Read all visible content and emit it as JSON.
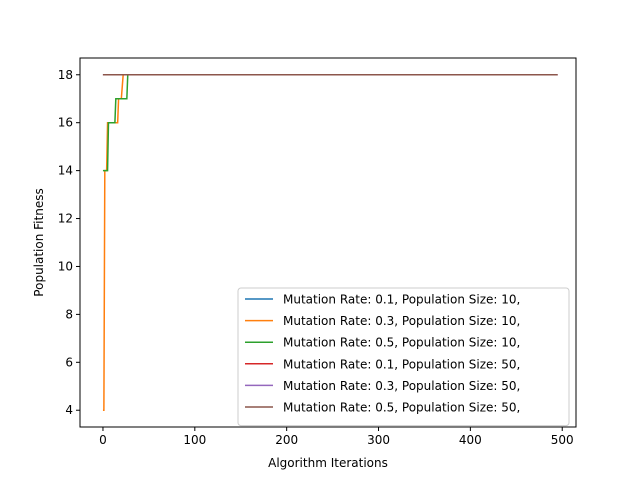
{
  "chart_data": {
    "type": "line",
    "title": "",
    "xlabel": "Algorithm Iterations",
    "ylabel": "Population Fitness",
    "xlim": [
      -25,
      515
    ],
    "ylim": [
      3.3,
      18.7
    ],
    "xticks": [
      0,
      100,
      200,
      300,
      400,
      500
    ],
    "yticks": [
      4,
      6,
      8,
      10,
      12,
      14,
      16,
      18
    ],
    "grid": false,
    "legend_position": "lower right",
    "series": [
      {
        "name": "Mutation Rate: 0.1, Population Size: 10,",
        "color": "#1f77b4",
        "points": [
          [
            0,
            18
          ],
          [
            480,
            18
          ]
        ]
      },
      {
        "name": "Mutation Rate: 0.3, Population Size: 10,",
        "color": "#ff7f0e",
        "points": [
          [
            0,
            4
          ],
          [
            1,
            4
          ],
          [
            2,
            14
          ],
          [
            4,
            14
          ],
          [
            5,
            16
          ],
          [
            16,
            16
          ],
          [
            17,
            17
          ],
          [
            20,
            17
          ],
          [
            22,
            18
          ],
          [
            480,
            18
          ]
        ]
      },
      {
        "name": "Mutation Rate: 0.5, Population Size: 10,",
        "color": "#2ca02c",
        "points": [
          [
            0,
            14
          ],
          [
            5,
            14
          ],
          [
            6,
            16
          ],
          [
            13,
            16
          ],
          [
            14,
            17
          ],
          [
            26,
            17
          ],
          [
            27,
            18
          ],
          [
            480,
            18
          ]
        ]
      },
      {
        "name": "Mutation Rate: 0.1, Population Size: 50,",
        "color": "#d62728",
        "points": [
          [
            0,
            18
          ],
          [
            495,
            18
          ]
        ]
      },
      {
        "name": "Mutation Rate: 0.3, Population Size: 50,",
        "color": "#9467bd",
        "points": [
          [
            0,
            18
          ],
          [
            495,
            18
          ]
        ]
      },
      {
        "name": "Mutation Rate: 0.5, Population Size: 50,",
        "color": "#8c564b",
        "points": [
          [
            0,
            18
          ],
          [
            495,
            18
          ]
        ]
      }
    ]
  }
}
